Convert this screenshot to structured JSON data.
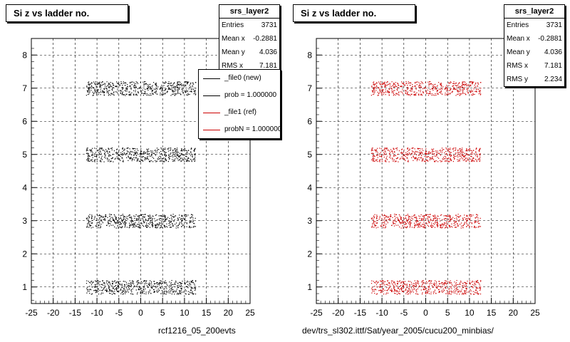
{
  "panels": [
    {
      "title": "Si z vs ladder no.",
      "xlabel": "rcf1216_05_200evts",
      "marker_color": "#000000",
      "stats": {
        "name": "srs_layer2",
        "rows": [
          {
            "label": "Entries",
            "value": "3731"
          },
          {
            "label": "Mean x",
            "value": "-0.2881"
          },
          {
            "label": "Mean y",
            "value": "4.036"
          },
          {
            "label": "RMS x",
            "value": "7.181"
          }
        ]
      },
      "legend": [
        {
          "label": "_file0 (new)",
          "color": "#000000"
        },
        {
          "label": "prob = 1.000000",
          "color": "#000000"
        },
        {
          "label": "_file1 (ref)",
          "color": "#cc0000"
        },
        {
          "label": "probN = 1.000000",
          "color": "#cc0000"
        }
      ]
    },
    {
      "title": "Si z vs ladder no.",
      "xlabel": "dev/trs_sl302.ittf/Sat/year_2005/cucu200_minbias/",
      "marker_color": "#cc0000",
      "stats": {
        "name": "srs_layer2",
        "rows": [
          {
            "label": "Entries",
            "value": "3731"
          },
          {
            "label": "Mean x",
            "value": "-0.2881"
          },
          {
            "label": "Mean y",
            "value": "4.036"
          },
          {
            "label": "RMS x",
            "value": "7.181"
          },
          {
            "label": "RMS y",
            "value": "2.234"
          }
        ]
      }
    }
  ],
  "chart_data": [
    {
      "type": "scatter",
      "title": "Si z vs ladder no.",
      "xlabel": "rcf1216_05_200evts",
      "ylabel": "",
      "xlim": [
        -25,
        25
      ],
      "ylim": [
        0.5,
        8.5
      ],
      "xticks": [
        -25,
        -20,
        -15,
        -10,
        -5,
        0,
        5,
        10,
        15,
        20,
        25
      ],
      "yticks": [
        1,
        2,
        3,
        4,
        5,
        6,
        7,
        8
      ],
      "grid": true,
      "bands": [
        {
          "y": 1,
          "x_range": [
            -12.5,
            12.5
          ]
        },
        {
          "y": 3,
          "x_range": [
            -12.5,
            12.5
          ]
        },
        {
          "y": 5,
          "x_range": [
            -12.5,
            12.5
          ]
        },
        {
          "y": 7,
          "x_range": [
            -12.5,
            12.5
          ]
        }
      ],
      "color": "#000000"
    },
    {
      "type": "scatter",
      "title": "Si z vs ladder no.",
      "xlabel": "dev/trs_sl302.ittf/Sat/year_2005/cucu200_minbias/",
      "ylabel": "",
      "xlim": [
        -25,
        25
      ],
      "ylim": [
        0.5,
        8.5
      ],
      "xticks": [
        -25,
        -20,
        -15,
        -10,
        -5,
        0,
        5,
        10,
        15,
        20,
        25
      ],
      "yticks": [
        1,
        2,
        3,
        4,
        5,
        6,
        7,
        8
      ],
      "grid": true,
      "bands": [
        {
          "y": 1,
          "x_range": [
            -12.5,
            12.5
          ]
        },
        {
          "y": 3,
          "x_range": [
            -12.5,
            12.5
          ]
        },
        {
          "y": 5,
          "x_range": [
            -12.5,
            12.5
          ]
        },
        {
          "y": 7,
          "x_range": [
            -12.5,
            12.5
          ]
        }
      ],
      "color": "#cc0000"
    }
  ]
}
